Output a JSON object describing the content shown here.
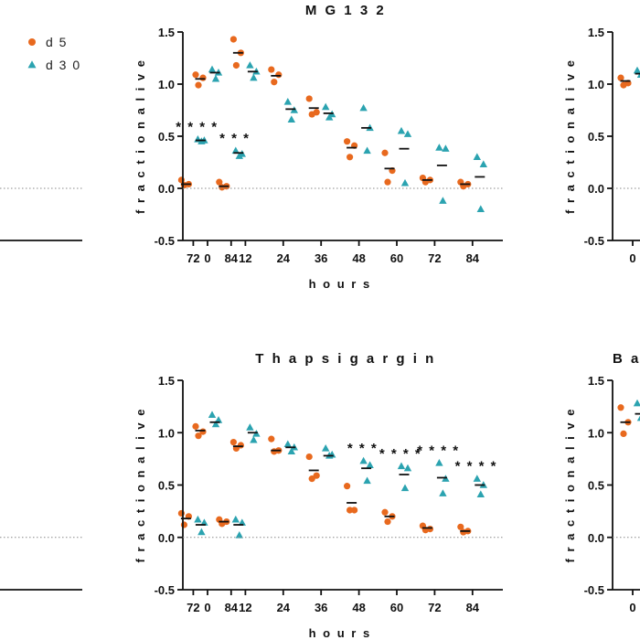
{
  "colors": {
    "d5": "#E8691E",
    "d30": "#2BA3B0",
    "axis": "#111111",
    "mean": "#111111",
    "zero_line": "#888888"
  },
  "legend": {
    "items": [
      {
        "label": "d 5",
        "marker": "circle"
      },
      {
        "label": "d 3 0",
        "marker": "triangle"
      }
    ]
  },
  "chart_data": [
    {
      "type": "scatter",
      "title": "",
      "xlabel": "",
      "ylabel": "",
      "x": [
        72,
        84
      ],
      "ylim": [
        -0.5,
        1.5
      ],
      "x_tick_labels": [
        "72",
        "84"
      ],
      "y_tick_labels": [],
      "series": [
        {
          "name": "d 5",
          "marker": "circle",
          "values": [
            [
              0.08,
              0.04,
              0.03
            ],
            [
              0.06,
              0.02,
              0.01
            ]
          ],
          "means": [
            0.04,
            0.02
          ]
        },
        {
          "name": "d 3 0",
          "marker": "triangle",
          "values": [
            [
              0.47,
              0.46,
              0.45
            ],
            [
              0.36,
              0.33,
              0.31
            ]
          ],
          "means": [
            0.46,
            0.34
          ]
        }
      ],
      "significance": [
        {
          "x": 72,
          "label": "* * * *"
        },
        {
          "x": 84,
          "label": "* * *"
        }
      ],
      "zero_line": true,
      "grid": false
    },
    {
      "type": "scatter",
      "title": "M G 1 3 2",
      "xlabel": "h o u r s",
      "ylabel": "f r a c t i o n   a l i v e",
      "x": [
        0,
        12,
        24,
        36,
        48,
        60,
        72,
        84
      ],
      "ylim": [
        -0.5,
        1.5
      ],
      "x_tick_labels": [
        "0",
        "12",
        "24",
        "36",
        "48",
        "60",
        "72",
        "84"
      ],
      "y_tick_labels": [
        "1.5",
        "1.0",
        "0.5",
        "0.0",
        "-0.5"
      ],
      "series": [
        {
          "name": "d 5",
          "marker": "circle",
          "values": [
            [
              1.09,
              1.06,
              0.99
            ],
            [
              1.43,
              1.3,
              1.18
            ],
            [
              1.14,
              1.09,
              1.02
            ],
            [
              0.86,
              0.73,
              0.71
            ],
            [
              0.45,
              0.41,
              0.3
            ],
            [
              0.34,
              0.17,
              0.06
            ],
            [
              0.1,
              0.08,
              0.06
            ],
            [
              0.06,
              0.04,
              0.02
            ]
          ],
          "means": [
            1.05,
            1.3,
            1.08,
            0.77,
            0.39,
            0.19,
            0.08,
            0.04
          ]
        },
        {
          "name": "d 3 0",
          "marker": "triangle",
          "values": [
            [
              1.14,
              1.11,
              1.05
            ],
            [
              1.18,
              1.12,
              1.06
            ],
            [
              0.83,
              0.75,
              0.66
            ],
            [
              0.78,
              0.71,
              0.68
            ],
            [
              0.77,
              0.58,
              0.36
            ],
            [
              0.55,
              0.52,
              0.05
            ],
            [
              0.39,
              0.38,
              -0.12
            ],
            [
              0.3,
              0.23,
              -0.2
            ]
          ],
          "means": [
            1.11,
            1.12,
            0.76,
            0.72,
            0.58,
            0.38,
            0.22,
            0.11
          ]
        }
      ],
      "zero_line": true,
      "grid": false
    },
    {
      "type": "scatter",
      "title": "",
      "xlabel": "",
      "ylabel": "f r a c t i o n   a l i v e",
      "x": [
        0
      ],
      "ylim": [
        -0.5,
        1.5
      ],
      "x_tick_labels": [
        "0"
      ],
      "y_tick_labels": [
        "1.5",
        "1.0",
        "0.5",
        "0.0",
        "-0.5"
      ],
      "series": [
        {
          "name": "d 5",
          "marker": "circle",
          "values": [
            [
              1.06,
              1.01,
              0.99
            ]
          ],
          "means": [
            1.03
          ]
        },
        {
          "name": "d 3 0",
          "marker": "triangle",
          "values": [
            [
              1.13,
              1.11,
              1.09
            ]
          ],
          "means": [
            1.1
          ]
        }
      ],
      "zero_line": true,
      "grid": false
    },
    {
      "type": "scatter",
      "title": "",
      "xlabel": "",
      "ylabel": "",
      "x": [
        72,
        84
      ],
      "ylim": [
        -0.5,
        1.5
      ],
      "x_tick_labels": [
        "72",
        "84"
      ],
      "y_tick_labels": [],
      "series": [
        {
          "name": "d 5",
          "marker": "circle",
          "values": [
            [
              0.23,
              0.2,
              0.12
            ],
            [
              0.17,
              0.15,
              0.13
            ]
          ],
          "means": [
            0.18,
            0.15
          ]
        },
        {
          "name": "d 3 0",
          "marker": "triangle",
          "values": [
            [
              0.17,
              0.14,
              0.05
            ],
            [
              0.17,
              0.14,
              0.02
            ]
          ],
          "means": [
            0.12,
            0.12
          ]
        }
      ],
      "zero_line": true,
      "grid": false
    },
    {
      "type": "scatter",
      "title": "T h a p s i g a r g i n",
      "xlabel": "h o u r s",
      "ylabel": "f r a c t i o n   a l i v e",
      "x": [
        0,
        12,
        24,
        36,
        48,
        60,
        72,
        84
      ],
      "ylim": [
        -0.5,
        1.5
      ],
      "x_tick_labels": [
        "0",
        "12",
        "24",
        "36",
        "48",
        "60",
        "72",
        "84"
      ],
      "y_tick_labels": [
        "1.5",
        "1.0",
        "0.5",
        "0.0",
        "-0.5"
      ],
      "series": [
        {
          "name": "d 5",
          "marker": "circle",
          "values": [
            [
              1.06,
              1.01,
              0.97
            ],
            [
              0.91,
              0.88,
              0.85
            ],
            [
              0.94,
              0.83,
              0.82
            ],
            [
              0.77,
              0.59,
              0.56
            ],
            [
              0.49,
              0.26,
              0.26
            ],
            [
              0.24,
              0.2,
              0.15
            ],
            [
              0.11,
              0.08,
              0.07
            ],
            [
              0.1,
              0.06,
              0.05
            ]
          ],
          "means": [
            1.02,
            0.87,
            0.83,
            0.64,
            0.33,
            0.2,
            0.09,
            0.06
          ]
        },
        {
          "name": "d 3 0",
          "marker": "triangle",
          "values": [
            [
              1.17,
              1.12,
              1.08
            ],
            [
              1.05,
              0.99,
              0.93
            ],
            [
              0.89,
              0.86,
              0.82
            ],
            [
              0.85,
              0.79,
              0.78
            ],
            [
              0.73,
              0.69,
              0.54
            ],
            [
              0.68,
              0.66,
              0.47
            ],
            [
              0.71,
              0.56,
              0.42
            ],
            [
              0.56,
              0.5,
              0.41
            ]
          ],
          "means": [
            1.1,
            1.0,
            0.86,
            0.78,
            0.66,
            0.6,
            0.57,
            0.5
          ]
        }
      ],
      "significance": [
        {
          "x": 48,
          "label": "* * *"
        },
        {
          "x": 60,
          "label": "* * * *"
        },
        {
          "x": 72,
          "label": "* * * *"
        },
        {
          "x": 84,
          "label": "* * * *"
        }
      ],
      "zero_line": true,
      "grid": false
    },
    {
      "type": "scatter",
      "title": "B a f",
      "xlabel": "",
      "ylabel": "f r a c t i o n   a l i v e",
      "x": [
        0
      ],
      "ylim": [
        -0.5,
        1.5
      ],
      "x_tick_labels": [
        "0"
      ],
      "y_tick_labels": [
        "1.5",
        "1.0",
        "0.5",
        "0.0",
        "-0.5"
      ],
      "series": [
        {
          "name": "d 5",
          "marker": "circle",
          "values": [
            [
              1.24,
              1.1,
              0.99
            ]
          ],
          "means": [
            1.1
          ]
        },
        {
          "name": "d 3 0",
          "marker": "triangle",
          "values": [
            [
              1.28,
              1.18,
              1.14
            ]
          ],
          "means": [
            1.18
          ]
        }
      ],
      "zero_line": true,
      "grid": false
    }
  ]
}
